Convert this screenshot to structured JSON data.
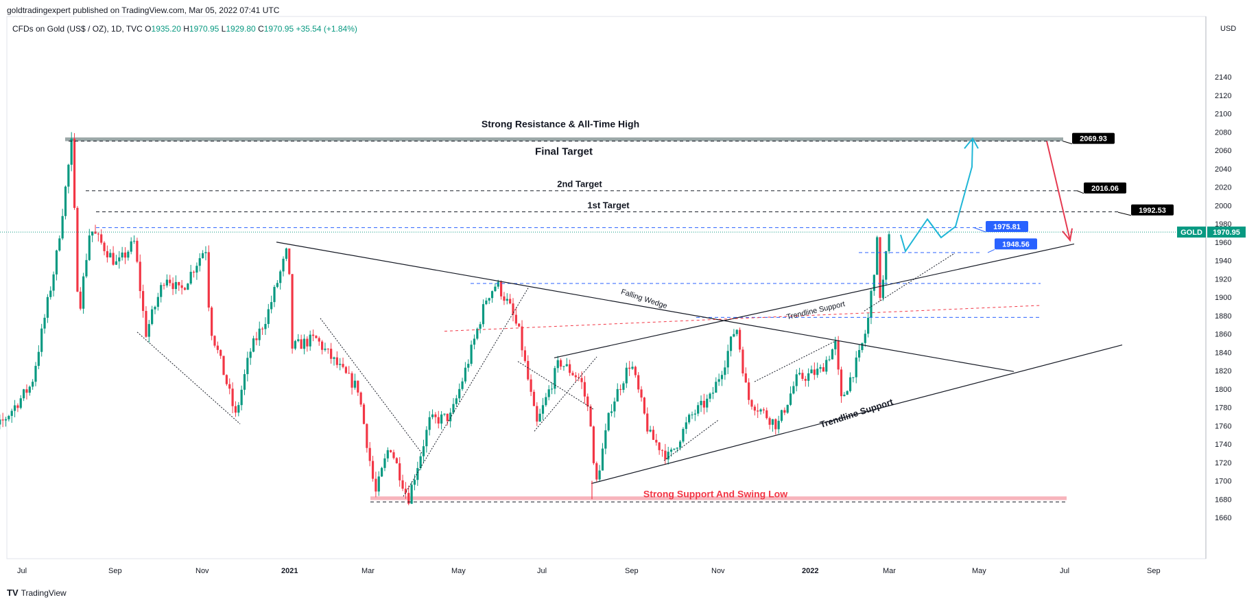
{
  "header": {
    "publisher": "goldtradingexpert published on TradingView.com, Mar 05, 2022 07:41 UTC",
    "instrument": "CFDs on Gold (US$ / OZ), 1D, TVC",
    "open_label": "O",
    "open": "1935.20",
    "high_label": "H",
    "high": "1970.95",
    "low_label": "L",
    "low": "1929.80",
    "close_label": "C",
    "close": "1970.95",
    "change": "+35.54 (+1.84%)"
  },
  "footer": {
    "logo_text": "TradingView",
    "logo_mark": "TV"
  },
  "colors": {
    "up": "#089981",
    "down": "#f23645",
    "target_box": "#000000",
    "blue_box": "#2962ff",
    "projection_up": "#1fb6d6",
    "projection_down": "#e53950",
    "resistance_zone": "#9aa7a7",
    "support_zone": "#f7b4bc"
  },
  "chart_data": {
    "type": "candlestick",
    "title": "",
    "currency_label": "USD",
    "price_axis": {
      "min": 1650,
      "max": 2150,
      "ticks": [
        1660,
        1680,
        1700,
        1720,
        1740,
        1760,
        1780,
        1800,
        1820,
        1840,
        1860,
        1880,
        1900,
        1920,
        1940,
        1960,
        1980,
        2000,
        2020,
        2040,
        2060,
        2080,
        2100,
        2120,
        2140
      ],
      "top_partial_tick": "2140"
    },
    "time_axis": {
      "labels": [
        "Jul",
        "Sep",
        "Nov",
        "2021",
        "Mar",
        "May",
        "Jul",
        "Sep",
        "Nov",
        "2022",
        "Mar",
        "May",
        "Jul",
        "Sep"
      ],
      "bold_labels": [
        "2021",
        "2022"
      ]
    },
    "current_price": {
      "symbol": "GOLD",
      "value": "1970.95",
      "price": 1970.95
    },
    "price_boxes": [
      {
        "label": "2069.93",
        "price": 2069.93,
        "style": "black"
      },
      {
        "label": "2016.06",
        "price": 2016.06,
        "style": "black"
      },
      {
        "label": "1992.53",
        "price": 1992.53,
        "style": "black"
      },
      {
        "label": "1975.81",
        "price": 1975.81,
        "style": "blue"
      },
      {
        "label": "1948.56",
        "price": 1948.56,
        "style": "blue"
      }
    ],
    "annotations": {
      "resistance": "Strong Resistance & All-Time High",
      "final_target": "Final Target",
      "second_target": "2nd Target",
      "first_target": "1st Target",
      "falling_wedge": "Falling Wedge",
      "trendline_support_upper": "Trendline Support",
      "trendline_support_lower": "Trendline Support",
      "support": "Strong Support And Swing Low"
    },
    "levels": {
      "resistance_zone": [
        2070,
        2074
      ],
      "support_zone": [
        1679,
        1683
      ],
      "final_target": 2070,
      "second_target": 2016,
      "first_target": 1993,
      "upper_blue": 1975.8,
      "lower_blue": 1948.6,
      "blue_1915": 1915,
      "blue_1878": 1878,
      "support_dash": 1677
    },
    "swing_points": [
      {
        "date": "2020-06-01",
        "price": 1730
      },
      {
        "date": "2020-06-20",
        "price": 1765
      },
      {
        "date": "2020-07-10",
        "price": 1805
      },
      {
        "date": "2020-07-27",
        "price": 1940
      },
      {
        "date": "2020-08-07",
        "price": 2068
      },
      {
        "date": "2020-08-12",
        "price": 1880
      },
      {
        "date": "2020-08-20",
        "price": 1975
      },
      {
        "date": "2020-09-08",
        "price": 1935
      },
      {
        "date": "2020-09-20",
        "price": 1960
      },
      {
        "date": "2020-09-28",
        "price": 1860
      },
      {
        "date": "2020-10-12",
        "price": 1925
      },
      {
        "date": "2020-10-22",
        "price": 1905
      },
      {
        "date": "2020-11-09",
        "price": 1955
      },
      {
        "date": "2020-11-12",
        "price": 1870
      },
      {
        "date": "2020-11-24",
        "price": 1805
      },
      {
        "date": "2020-11-30",
        "price": 1770
      },
      {
        "date": "2020-12-10",
        "price": 1840
      },
      {
        "date": "2020-12-22",
        "price": 1880
      },
      {
        "date": "2021-01-06",
        "price": 1955
      },
      {
        "date": "2021-01-08",
        "price": 1845
      },
      {
        "date": "2021-01-25",
        "price": 1855
      },
      {
        "date": "2021-02-15",
        "price": 1815
      },
      {
        "date": "2021-02-24",
        "price": 1800
      },
      {
        "date": "2021-03-08",
        "price": 1685
      },
      {
        "date": "2021-03-18",
        "price": 1740
      },
      {
        "date": "2021-03-31",
        "price": 1680
      },
      {
        "date": "2021-04-15",
        "price": 1765
      },
      {
        "date": "2021-04-30",
        "price": 1770
      },
      {
        "date": "2021-05-12",
        "price": 1830
      },
      {
        "date": "2021-05-25",
        "price": 1900
      },
      {
        "date": "2021-06-01",
        "price": 1915
      },
      {
        "date": "2021-06-10",
        "price": 1890
      },
      {
        "date": "2021-06-17",
        "price": 1860
      },
      {
        "date": "2021-06-29",
        "price": 1760
      },
      {
        "date": "2021-07-15",
        "price": 1830
      },
      {
        "date": "2021-07-30",
        "price": 1810
      },
      {
        "date": "2021-08-06",
        "price": 1765
      },
      {
        "date": "2021-08-09",
        "price": 1690
      },
      {
        "date": "2021-08-20",
        "price": 1780
      },
      {
        "date": "2021-09-03",
        "price": 1830
      },
      {
        "date": "2021-09-16",
        "price": 1750
      },
      {
        "date": "2021-09-30",
        "price": 1725
      },
      {
        "date": "2021-10-15",
        "price": 1770
      },
      {
        "date": "2021-10-29",
        "price": 1790
      },
      {
        "date": "2021-11-08",
        "price": 1830
      },
      {
        "date": "2021-11-16",
        "price": 1870
      },
      {
        "date": "2021-11-24",
        "price": 1790
      },
      {
        "date": "2021-12-15",
        "price": 1760
      },
      {
        "date": "2021-12-28",
        "price": 1810
      },
      {
        "date": "2022-01-14",
        "price": 1820
      },
      {
        "date": "2022-01-25",
        "price": 1850
      },
      {
        "date": "2022-01-28",
        "price": 1785
      },
      {
        "date": "2022-02-10",
        "price": 1835
      },
      {
        "date": "2022-02-16",
        "price": 1870
      },
      {
        "date": "2022-02-24",
        "price": 1975
      },
      {
        "date": "2022-02-25",
        "price": 1890
      },
      {
        "date": "2022-03-01",
        "price": 1945
      },
      {
        "date": "2022-03-04",
        "price": 1971
      }
    ]
  }
}
